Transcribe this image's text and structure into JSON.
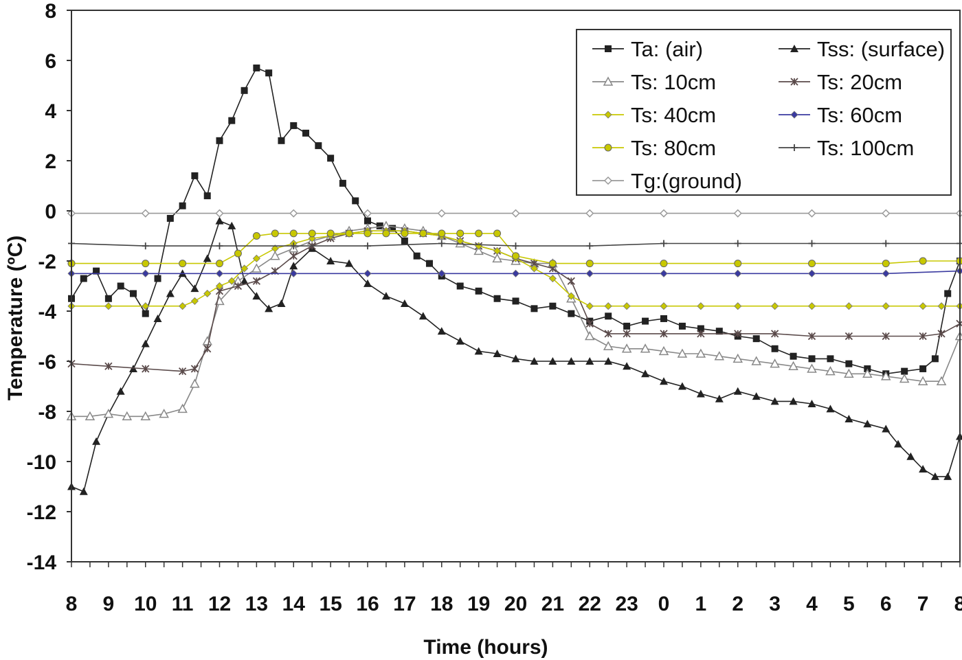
{
  "chart_data": {
    "type": "line",
    "title": "",
    "xlabel": "Time (hours)",
    "ylabel": "Temperature (ºC)",
    "ylim": [
      -14,
      8
    ],
    "yticks": [
      8,
      6,
      4,
      2,
      0,
      -2,
      -4,
      -6,
      -8,
      -10,
      -12,
      -14
    ],
    "xlim": [
      8,
      32
    ],
    "xtick_labels": [
      "8",
      "9",
      "10",
      "11",
      "12",
      "13",
      "14",
      "15",
      "16",
      "17",
      "18",
      "19",
      "20",
      "21",
      "22",
      "23",
      "0",
      "1",
      "2",
      "3",
      "4",
      "5",
      "6",
      "7",
      "8"
    ],
    "grid": false,
    "legend_position": "top-right",
    "series": [
      {
        "name": "Ta: (air)",
        "marker": "square",
        "color": "#222222",
        "x": [
          8,
          8.33,
          8.67,
          9,
          9.33,
          9.67,
          10,
          10.33,
          10.67,
          11,
          11.33,
          11.67,
          12,
          12.33,
          12.67,
          13,
          13.33,
          13.67,
          14,
          14.33,
          14.67,
          15,
          15.33,
          15.67,
          16,
          16.33,
          16.67,
          17,
          17.33,
          17.67,
          18,
          18.5,
          19,
          19.5,
          20,
          20.5,
          21,
          21.5,
          22,
          22.5,
          23,
          23.5,
          24,
          24.5,
          25,
          25.5,
          26,
          26.5,
          27,
          27.5,
          28,
          28.5,
          29,
          29.5,
          30,
          30.5,
          31,
          31.33,
          31.67,
          32
        ],
        "y": [
          -3.5,
          -2.7,
          -2.4,
          -3.5,
          -3.0,
          -3.3,
          -4.1,
          -2.7,
          -0.3,
          0.2,
          1.4,
          0.6,
          2.8,
          3.6,
          4.8,
          5.7,
          5.5,
          2.8,
          3.4,
          3.1,
          2.6,
          2.1,
          1.1,
          0.4,
          -0.4,
          -0.6,
          -0.7,
          -1.2,
          -1.8,
          -2.1,
          -2.6,
          -3.0,
          -3.2,
          -3.5,
          -3.6,
          -3.9,
          -3.8,
          -4.1,
          -4.4,
          -4.2,
          -4.6,
          -4.4,
          -4.3,
          -4.6,
          -4.7,
          -4.8,
          -5.0,
          -5.1,
          -5.5,
          -5.8,
          -5.9,
          -5.9,
          -6.1,
          -6.3,
          -6.5,
          -6.4,
          -6.3,
          -5.9,
          -3.3,
          -2.0
        ]
      },
      {
        "name": "Tss: (surface)",
        "marker": "triangle",
        "color": "#222222",
        "x": [
          8,
          8.33,
          8.67,
          9,
          9.33,
          9.67,
          10,
          10.33,
          10.67,
          11,
          11.33,
          11.67,
          12,
          12.33,
          12.67,
          13,
          13.33,
          13.67,
          14,
          14.5,
          15,
          15.5,
          16,
          16.5,
          17,
          17.5,
          18,
          18.5,
          19,
          19.5,
          20,
          20.5,
          21,
          21.5,
          22,
          22.5,
          23,
          23.5,
          24,
          24.5,
          25,
          25.5,
          26,
          26.5,
          27,
          27.5,
          28,
          28.5,
          29,
          29.5,
          30,
          30.33,
          30.67,
          31,
          31.33,
          31.67,
          32
        ],
        "y": [
          -11.0,
          -11.2,
          -9.2,
          -8.1,
          -7.2,
          -6.3,
          -5.3,
          -4.3,
          -3.3,
          -2.5,
          -3.1,
          -1.9,
          -0.4,
          -0.6,
          -2.8,
          -3.4,
          -3.9,
          -3.7,
          -2.2,
          -1.5,
          -2.0,
          -2.1,
          -2.9,
          -3.4,
          -3.7,
          -4.2,
          -4.8,
          -5.2,
          -5.6,
          -5.7,
          -5.9,
          -6.0,
          -6.0,
          -6.0,
          -6.0,
          -6.0,
          -6.2,
          -6.5,
          -6.8,
          -7.0,
          -7.3,
          -7.5,
          -7.2,
          -7.4,
          -7.6,
          -7.6,
          -7.7,
          -7.9,
          -8.3,
          -8.5,
          -8.7,
          -9.3,
          -9.8,
          -10.3,
          -10.6,
          -10.6,
          -9.0
        ]
      },
      {
        "name": "Ts: 10cm",
        "marker": "open-triangle",
        "color": "#888888",
        "x": [
          8,
          8.5,
          9,
          9.5,
          10,
          10.5,
          11,
          11.33,
          11.67,
          12,
          12.5,
          13,
          13.5,
          14,
          14.5,
          15,
          15.5,
          16,
          16.5,
          17,
          17.5,
          18,
          18.5,
          19,
          19.5,
          20,
          20.5,
          21,
          21.5,
          22,
          22.5,
          23,
          23.5,
          24,
          24.5,
          25,
          25.5,
          26,
          26.5,
          27,
          27.5,
          28,
          28.5,
          29,
          29.5,
          30,
          30.5,
          31,
          31.5,
          32
        ],
        "y": [
          -8.2,
          -8.2,
          -8.1,
          -8.2,
          -8.2,
          -8.1,
          -7.9,
          -6.9,
          -5.2,
          -3.6,
          -2.8,
          -2.3,
          -1.8,
          -1.5,
          -1.2,
          -1.0,
          -0.8,
          -0.7,
          -0.6,
          -0.7,
          -0.8,
          -1.0,
          -1.3,
          -1.6,
          -1.9,
          -2.0,
          -2.1,
          -2.1,
          -3.5,
          -5.0,
          -5.4,
          -5.5,
          -5.5,
          -5.6,
          -5.7,
          -5.7,
          -5.8,
          -5.9,
          -6.0,
          -6.1,
          -6.2,
          -6.3,
          -6.4,
          -6.5,
          -6.5,
          -6.6,
          -6.7,
          -6.8,
          -6.8,
          -5.0
        ]
      },
      {
        "name": "Ts: 20cm",
        "marker": "star",
        "color": "#5a4a4a",
        "x": [
          8,
          9,
          10,
          11,
          11.33,
          11.67,
          12,
          12.5,
          13,
          13.5,
          14,
          14.5,
          15,
          15.5,
          16,
          16.5,
          17,
          17.5,
          18,
          18.5,
          19,
          19.5,
          20,
          20.5,
          21,
          21.5,
          22,
          22.5,
          23,
          24,
          25,
          26,
          27,
          28,
          29,
          30,
          31,
          31.5,
          32
        ],
        "y": [
          -6.1,
          -6.2,
          -6.3,
          -6.4,
          -6.3,
          -5.5,
          -3.2,
          -3.0,
          -2.8,
          -2.4,
          -1.8,
          -1.4,
          -1.1,
          -0.9,
          -0.8,
          -0.8,
          -0.8,
          -0.9,
          -1.0,
          -1.2,
          -1.4,
          -1.6,
          -1.9,
          -2.1,
          -2.3,
          -2.8,
          -4.5,
          -4.9,
          -4.9,
          -4.9,
          -4.9,
          -4.9,
          -4.9,
          -5.0,
          -5.0,
          -5.0,
          -5.0,
          -4.9,
          -4.5
        ]
      },
      {
        "name": "Ts: 40cm",
        "marker": "diamond",
        "color": "#c8c800",
        "x": [
          8,
          9,
          10,
          11,
          11.33,
          11.67,
          12,
          12.33,
          12.67,
          13,
          13.5,
          14,
          14.5,
          15,
          15.5,
          16,
          16.5,
          17,
          17.5,
          18,
          18.5,
          19,
          19.5,
          20,
          20.5,
          21,
          21.5,
          22,
          22.5,
          23,
          24,
          25,
          26,
          27,
          28,
          29,
          30,
          31,
          31.5,
          32
        ],
        "y": [
          -3.8,
          -3.8,
          -3.8,
          -3.8,
          -3.6,
          -3.3,
          -3.0,
          -2.8,
          -2.3,
          -1.9,
          -1.5,
          -1.3,
          -1.1,
          -1.0,
          -0.9,
          -0.8,
          -0.8,
          -0.8,
          -0.9,
          -1.0,
          -1.2,
          -1.4,
          -1.6,
          -1.9,
          -2.3,
          -2.7,
          -3.4,
          -3.8,
          -3.8,
          -3.8,
          -3.8,
          -3.8,
          -3.8,
          -3.8,
          -3.8,
          -3.8,
          -3.8,
          -3.8,
          -3.8,
          -3.8
        ]
      },
      {
        "name": "Ts: 60cm",
        "marker": "diamond",
        "color": "#3a3aa0",
        "x": [
          8,
          10,
          12,
          14,
          16,
          18,
          20,
          22,
          24,
          26,
          28,
          30,
          32
        ],
        "y": [
          -2.5,
          -2.5,
          -2.5,
          -2.5,
          -2.5,
          -2.5,
          -2.5,
          -2.5,
          -2.5,
          -2.5,
          -2.5,
          -2.5,
          -2.4
        ]
      },
      {
        "name": "Ts: 80cm",
        "marker": "circle",
        "color": "#c8c800",
        "x": [
          8,
          10,
          11,
          12,
          12.5,
          13,
          13.5,
          14,
          14.5,
          15,
          15.5,
          16,
          16.5,
          17,
          17.5,
          18,
          18.5,
          19,
          19.5,
          20,
          21,
          22,
          24,
          26,
          28,
          30,
          31,
          32
        ],
        "y": [
          -2.1,
          -2.1,
          -2.1,
          -2.1,
          -1.7,
          -1.0,
          -0.9,
          -0.9,
          -0.9,
          -0.9,
          -0.9,
          -0.9,
          -0.9,
          -0.9,
          -0.9,
          -0.9,
          -0.9,
          -0.9,
          -0.9,
          -1.8,
          -2.1,
          -2.1,
          -2.1,
          -2.1,
          -2.1,
          -2.1,
          -2.0,
          -2.0
        ]
      },
      {
        "name": "Ts: 100cm",
        "marker": "plus",
        "color": "#444444",
        "x": [
          8,
          10,
          12,
          14,
          16,
          18,
          20,
          22,
          24,
          26,
          28,
          30,
          32
        ],
        "y": [
          -1.3,
          -1.4,
          -1.4,
          -1.4,
          -1.4,
          -1.3,
          -1.4,
          -1.4,
          -1.3,
          -1.3,
          -1.3,
          -1.3,
          -1.3
        ]
      },
      {
        "name": "Tg:(ground)",
        "marker": "open-diamond",
        "color": "#999999",
        "x": [
          8,
          10,
          12,
          14,
          16,
          18,
          20,
          22,
          24,
          26,
          28,
          30,
          32
        ],
        "y": [
          -0.1,
          -0.1,
          -0.1,
          -0.1,
          -0.1,
          -0.1,
          -0.1,
          -0.1,
          -0.1,
          -0.1,
          -0.1,
          -0.1,
          -0.1
        ]
      }
    ]
  }
}
